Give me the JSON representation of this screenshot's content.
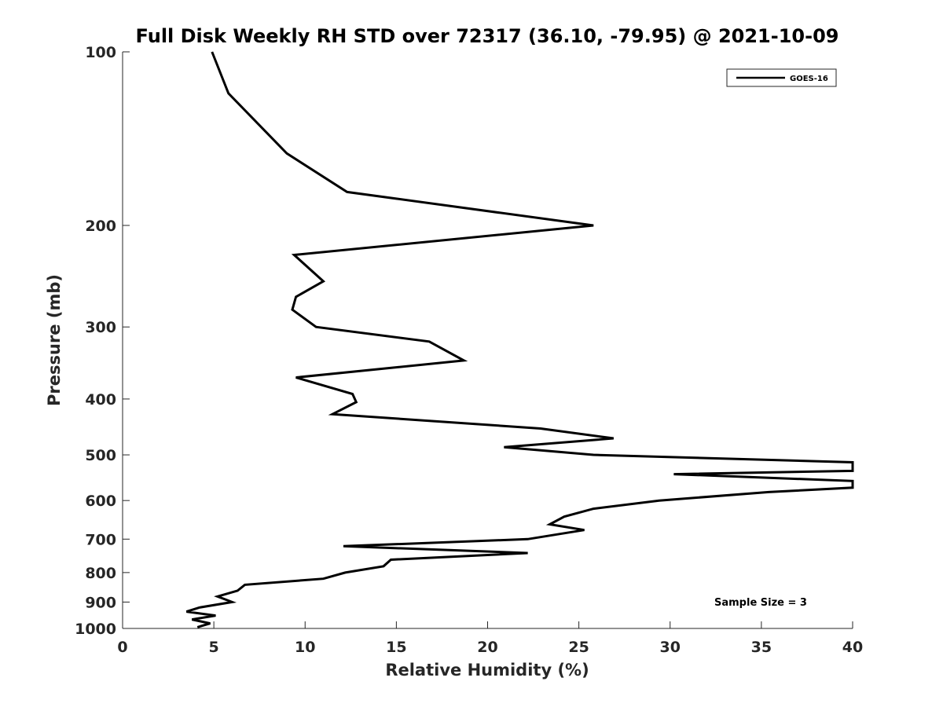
{
  "chart_data": {
    "type": "line",
    "title": "Full Disk Weekly RH STD over 72317 (36.10, -79.95) @ 2021-10-09",
    "xlabel": "Relative Humidity (%)",
    "ylabel": "Pressure (mb)",
    "xlim": [
      0,
      40
    ],
    "ylim": [
      100,
      1000
    ],
    "yscale": "log",
    "yreversed": true,
    "grid": false,
    "legend_placement": "top-right",
    "x_ticks": [
      "0",
      "5",
      "10",
      "15",
      "20",
      "25",
      "30",
      "35",
      "40"
    ],
    "y_ticks": [
      "100",
      "200",
      "300",
      "400",
      "500",
      "600",
      "700",
      "800",
      "900",
      "1000"
    ],
    "series": [
      {
        "name": "GOES-16",
        "color": "#000000",
        "points": [
          [
            4.9,
            100
          ],
          [
            5.8,
            118
          ],
          [
            9.0,
            150
          ],
          [
            12.3,
            175
          ],
          [
            25.8,
            200
          ],
          [
            9.4,
            225
          ],
          [
            11.0,
            250
          ],
          [
            9.5,
            266
          ],
          [
            9.3,
            280
          ],
          [
            10.6,
            300
          ],
          [
            16.8,
            318
          ],
          [
            18.7,
            343
          ],
          [
            9.5,
            367
          ],
          [
            12.6,
            392
          ],
          [
            12.8,
            405
          ],
          [
            11.5,
            425
          ],
          [
            22.9,
            450
          ],
          [
            26.9,
            468
          ],
          [
            20.9,
            485
          ],
          [
            25.8,
            500
          ],
          [
            40.0,
            515
          ],
          [
            40.0,
            533
          ],
          [
            30.2,
            540
          ],
          [
            40.0,
            555
          ],
          [
            40.0,
            570
          ],
          [
            35.4,
            580
          ],
          [
            29.4,
            600
          ],
          [
            25.8,
            620
          ],
          [
            24.2,
            640
          ],
          [
            23.4,
            660
          ],
          [
            25.3,
            675
          ],
          [
            22.2,
            700
          ],
          [
            12.1,
            720
          ],
          [
            22.2,
            740
          ],
          [
            14.7,
            760
          ],
          [
            14.3,
            780
          ],
          [
            12.2,
            800
          ],
          [
            11.0,
            820
          ],
          [
            6.7,
            840
          ],
          [
            6.3,
            860
          ],
          [
            5.2,
            880
          ],
          [
            6.0,
            900
          ],
          [
            4.2,
            920
          ],
          [
            3.5,
            935
          ],
          [
            5.1,
            950
          ],
          [
            3.8,
            965
          ],
          [
            4.8,
            980
          ],
          [
            4.1,
            995
          ]
        ]
      }
    ],
    "annotation": "Sample Size = 3"
  }
}
